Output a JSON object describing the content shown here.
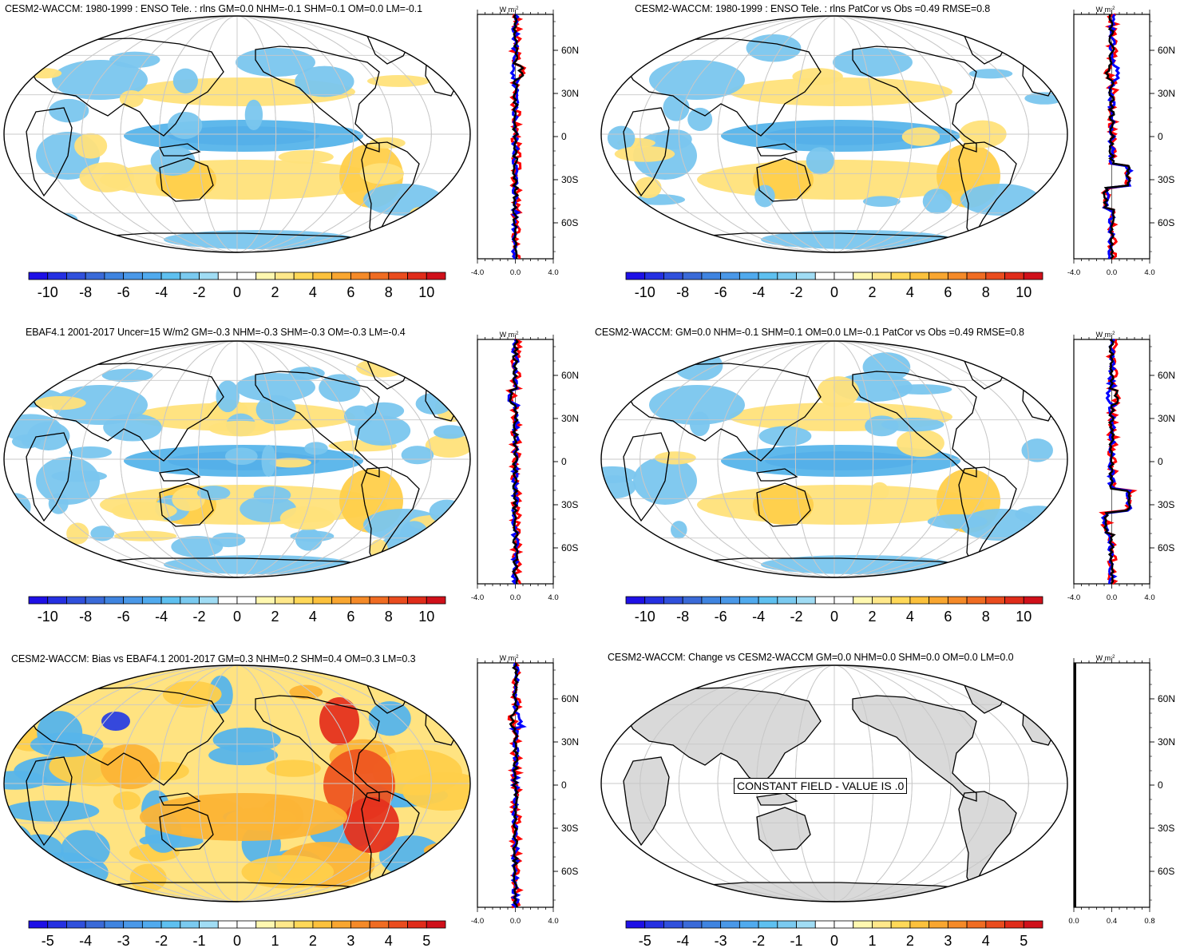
{
  "colors": {
    "levels10": [
      "#1e10e6",
      "#2a3fe0",
      "#3b64d8",
      "#3f84e0",
      "#4aa0e6",
      "#56b4ea",
      "#7ac6ee",
      "#a8dcf4",
      "#ffffff",
      "#ffffff",
      "#fff4a8",
      "#ffe27a",
      "#ffcf4a",
      "#fcb436",
      "#f8962a",
      "#f37624",
      "#ee5520",
      "#e5321e",
      "#d4141a"
    ],
    "obs_line": "#ff0000",
    "model_line": "#0000ff",
    "diff_line": "#000000",
    "land_gray": "#d9d9d9"
  },
  "panels": [
    {
      "title": "CESM2-WACCM: 1980-1999 : ENSO Tele. : rlns GM=0.0 NHM=-0.1 SHM=0.1 OM=0.0 LM=-0.1",
      "colorbar_labels": [
        "-10",
        "-8",
        "-6",
        "-4",
        "-2",
        "0",
        "2",
        "4",
        "6",
        "8",
        "10"
      ],
      "zonal": {
        "unit": "W m",
        "unit_sup": "-2",
        "lat_ticks": [
          "60N",
          "30N",
          "0",
          "30S",
          "60S"
        ],
        "x_ticks": [
          "-4.0",
          "0.0",
          "4.0"
        ]
      },
      "field": "enso"
    },
    {
      "title": "CESM2-WACCM: 1980-1999 : ENSO Tele. : rlns PatCor vs Obs =0.49 RMSE=0.8",
      "colorbar_labels": [
        "-10",
        "-8",
        "-6",
        "-4",
        "-2",
        "0",
        "2",
        "4",
        "6",
        "8",
        "10"
      ],
      "zonal": {
        "unit": "W m",
        "unit_sup": "-2",
        "lat_ticks": [
          "60N",
          "30N",
          "0",
          "30S",
          "60S"
        ],
        "x_ticks": [
          "-4.0",
          "0.0",
          "4.0"
        ]
      },
      "field": "enso"
    },
    {
      "title": "EBAF4.1 2001-2017 Uncer=15 W/m2 GM=-0.3 NHM=-0.3 SHM=-0.3 OM=-0.3 LM=-0.4",
      "colorbar_labels": [
        "-10",
        "-8",
        "-6",
        "-4",
        "-2",
        "0",
        "2",
        "4",
        "6",
        "8",
        "10"
      ],
      "zonal": {
        "unit": "W m",
        "unit_sup": "-2",
        "lat_ticks": [
          "60N",
          "30N",
          "0",
          "30S",
          "60S"
        ],
        "x_ticks": [
          "-4.0",
          "0.0",
          "4.0"
        ]
      },
      "field": "obs"
    },
    {
      "title": "CESM2-WACCM: GM=0.0 NHM=-0.1 SHM=0.1 OM=0.0 LM=-0.1 PatCor vs Obs =0.49 RMSE=0.8",
      "colorbar_labels": [
        "-10",
        "-8",
        "-6",
        "-4",
        "-2",
        "0",
        "2",
        "4",
        "6",
        "8",
        "10"
      ],
      "zonal": {
        "unit": "W m",
        "unit_sup": "-2",
        "lat_ticks": [
          "60N",
          "30N",
          "0",
          "30S",
          "60S"
        ],
        "x_ticks": [
          "-4.0",
          "0.0",
          "4.0"
        ]
      },
      "field": "enso"
    },
    {
      "title": "CESM2-WACCM: Bias vs EBAF4.1 2001-2017 GM=0.3 NHM=0.2 SHM=0.4 OM=0.3 LM=0.3",
      "colorbar_labels": [
        "-5",
        "-4",
        "-3",
        "-2",
        "-1",
        "0",
        "1",
        "2",
        "3",
        "4",
        "5"
      ],
      "zonal": {
        "unit": "W m",
        "unit_sup": "-2",
        "lat_ticks": [
          "60N",
          "30N",
          "0",
          "30S",
          "60S"
        ],
        "x_ticks": [
          "-4.0",
          "0.0",
          "4.0"
        ]
      },
      "field": "bias"
    },
    {
      "title": "CESM2-WACCM: Change vs CESM2-WACCM GM=0.0 NHM=0.0 SHM=0.0 OM=0.0 LM=0.0",
      "colorbar_labels": [
        "-5",
        "-4",
        "-3",
        "-2",
        "-1",
        "0",
        "1",
        "2",
        "3",
        "4",
        "5"
      ],
      "zonal": {
        "unit": "W m",
        "unit_sup": "-2",
        "lat_ticks": [
          "60N",
          "30N",
          "0",
          "30S",
          "60S"
        ],
        "x_ticks": [
          "0.0",
          "0.4",
          "0.8"
        ]
      },
      "field": "constant",
      "constant_label": "CONSTANT FIELD - VALUE IS .0"
    }
  ]
}
